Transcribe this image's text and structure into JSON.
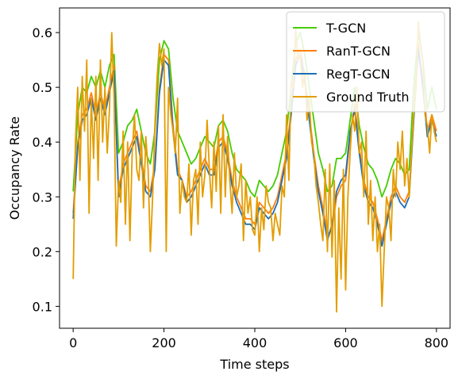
{
  "chart_data": {
    "type": "line",
    "title": "",
    "xlabel": "Time steps",
    "ylabel": "Occupancy Rate",
    "xlim": [
      -30,
      830
    ],
    "ylim": [
      0.06,
      0.645
    ],
    "xticks": [
      0,
      200,
      400,
      600,
      800
    ],
    "yticks": [
      0.1,
      0.2,
      0.3,
      0.4,
      0.5,
      0.6
    ],
    "grid": false,
    "legend": "top-right",
    "series": [
      {
        "name": "T-GCN",
        "color": "#44cc00",
        "x": [
          0,
          10,
          20,
          30,
          40,
          50,
          60,
          70,
          80,
          90,
          100,
          110,
          120,
          130,
          140,
          150,
          160,
          170,
          180,
          190,
          200,
          210,
          220,
          230,
          240,
          250,
          260,
          270,
          280,
          290,
          300,
          310,
          320,
          330,
          340,
          350,
          360,
          370,
          380,
          390,
          400,
          410,
          420,
          430,
          440,
          450,
          460,
          470,
          480,
          490,
          500,
          510,
          520,
          530,
          540,
          550,
          560,
          570,
          580,
          590,
          600,
          610,
          620,
          630,
          640,
          650,
          660,
          670,
          680,
          690,
          700,
          710,
          720,
          730,
          740,
          750,
          760,
          770,
          780,
          790,
          800
        ],
        "y": [
          0.31,
          0.45,
          0.5,
          0.49,
          0.52,
          0.5,
          0.53,
          0.5,
          0.54,
          0.56,
          0.38,
          0.4,
          0.43,
          0.44,
          0.46,
          0.42,
          0.38,
          0.36,
          0.42,
          0.55,
          0.585,
          0.57,
          0.48,
          0.42,
          0.4,
          0.38,
          0.36,
          0.37,
          0.39,
          0.41,
          0.4,
          0.39,
          0.43,
          0.44,
          0.42,
          0.38,
          0.35,
          0.34,
          0.33,
          0.31,
          0.3,
          0.33,
          0.32,
          0.31,
          0.32,
          0.34,
          0.38,
          0.42,
          0.5,
          0.58,
          0.6,
          0.56,
          0.5,
          0.44,
          0.38,
          0.35,
          0.31,
          0.32,
          0.37,
          0.37,
          0.38,
          0.44,
          0.5,
          0.43,
          0.39,
          0.36,
          0.35,
          0.33,
          0.3,
          0.32,
          0.35,
          0.37,
          0.36,
          0.34,
          0.35,
          0.5,
          0.6,
          0.55,
          0.46,
          0.5,
          0.46
        ]
      },
      {
        "name": "RanT-GCN",
        "color": "#ff7f0e",
        "x": [
          0,
          10,
          20,
          30,
          40,
          50,
          60,
          70,
          80,
          90,
          100,
          110,
          120,
          130,
          140,
          150,
          160,
          170,
          180,
          190,
          200,
          210,
          220,
          230,
          240,
          250,
          260,
          270,
          280,
          290,
          300,
          310,
          320,
          330,
          340,
          350,
          360,
          370,
          380,
          390,
          400,
          410,
          420,
          430,
          440,
          450,
          460,
          470,
          480,
          490,
          500,
          510,
          520,
          530,
          540,
          550,
          560,
          570,
          580,
          590,
          600,
          610,
          620,
          630,
          640,
          650,
          660,
          670,
          680,
          690,
          700,
          710,
          720,
          730,
          740,
          750,
          760,
          770,
          780,
          790,
          800
        ],
        "y": [
          0.27,
          0.4,
          0.45,
          0.46,
          0.49,
          0.45,
          0.49,
          0.46,
          0.5,
          0.54,
          0.31,
          0.36,
          0.38,
          0.4,
          0.42,
          0.37,
          0.32,
          0.31,
          0.36,
          0.5,
          0.56,
          0.55,
          0.43,
          0.35,
          0.33,
          0.3,
          0.31,
          0.33,
          0.35,
          0.37,
          0.35,
          0.35,
          0.4,
          0.41,
          0.38,
          0.33,
          0.3,
          0.28,
          0.26,
          0.26,
          0.25,
          0.29,
          0.28,
          0.27,
          0.28,
          0.3,
          0.34,
          0.38,
          0.46,
          0.55,
          0.57,
          0.52,
          0.45,
          0.38,
          0.32,
          0.28,
          0.23,
          0.24,
          0.3,
          0.32,
          0.33,
          0.41,
          0.47,
          0.39,
          0.33,
          0.3,
          0.29,
          0.26,
          0.22,
          0.26,
          0.3,
          0.32,
          0.3,
          0.29,
          0.31,
          0.45,
          0.58,
          0.51,
          0.42,
          0.45,
          0.42
        ]
      },
      {
        "name": "RegT-GCN",
        "color": "#1f6fb4",
        "x": [
          0,
          10,
          20,
          30,
          40,
          50,
          60,
          70,
          80,
          90,
          100,
          110,
          120,
          130,
          140,
          150,
          160,
          170,
          180,
          190,
          200,
          210,
          220,
          230,
          240,
          250,
          260,
          270,
          280,
          290,
          300,
          310,
          320,
          330,
          340,
          350,
          360,
          370,
          380,
          390,
          400,
          410,
          420,
          430,
          440,
          450,
          460,
          470,
          480,
          490,
          500,
          510,
          520,
          530,
          540,
          550,
          560,
          570,
          580,
          590,
          600,
          610,
          620,
          630,
          640,
          650,
          660,
          670,
          680,
          690,
          700,
          710,
          720,
          730,
          740,
          750,
          760,
          770,
          780,
          790,
          800
        ],
        "y": [
          0.26,
          0.39,
          0.44,
          0.45,
          0.48,
          0.44,
          0.48,
          0.45,
          0.49,
          0.53,
          0.3,
          0.35,
          0.37,
          0.39,
          0.41,
          0.36,
          0.31,
          0.3,
          0.35,
          0.49,
          0.55,
          0.54,
          0.42,
          0.34,
          0.33,
          0.29,
          0.3,
          0.32,
          0.34,
          0.36,
          0.34,
          0.34,
          0.39,
          0.4,
          0.37,
          0.32,
          0.29,
          0.27,
          0.25,
          0.25,
          0.24,
          0.28,
          0.27,
          0.26,
          0.27,
          0.29,
          0.33,
          0.37,
          0.45,
          0.54,
          0.56,
          0.51,
          0.44,
          0.37,
          0.31,
          0.27,
          0.22,
          0.25,
          0.31,
          0.33,
          0.34,
          0.42,
          0.46,
          0.38,
          0.32,
          0.29,
          0.28,
          0.25,
          0.21,
          0.25,
          0.29,
          0.31,
          0.29,
          0.28,
          0.3,
          0.44,
          0.57,
          0.5,
          0.41,
          0.44,
          0.41
        ]
      },
      {
        "name": "Ground Truth",
        "color": "#e39d00",
        "x": [
          0,
          5,
          10,
          15,
          20,
          25,
          30,
          35,
          40,
          45,
          50,
          55,
          60,
          65,
          70,
          75,
          80,
          85,
          90,
          95,
          100,
          105,
          110,
          115,
          120,
          125,
          130,
          135,
          140,
          145,
          150,
          155,
          160,
          165,
          170,
          175,
          180,
          185,
          190,
          195,
          200,
          205,
          210,
          215,
          220,
          225,
          230,
          235,
          240,
          245,
          250,
          255,
          260,
          265,
          270,
          275,
          280,
          285,
          290,
          295,
          300,
          305,
          310,
          315,
          320,
          325,
          330,
          335,
          340,
          345,
          350,
          355,
          360,
          365,
          370,
          375,
          380,
          385,
          390,
          395,
          400,
          405,
          410,
          415,
          420,
          425,
          430,
          435,
          440,
          445,
          450,
          455,
          460,
          465,
          470,
          475,
          480,
          485,
          490,
          495,
          500,
          505,
          510,
          515,
          520,
          525,
          530,
          535,
          540,
          545,
          550,
          555,
          560,
          565,
          570,
          575,
          580,
          585,
          590,
          595,
          600,
          605,
          610,
          615,
          620,
          625,
          630,
          635,
          640,
          645,
          650,
          655,
          660,
          665,
          670,
          675,
          680,
          685,
          690,
          695,
          700,
          705,
          710,
          715,
          720,
          725,
          730,
          735,
          740,
          745,
          750,
          755,
          760,
          765,
          770,
          775,
          780,
          785,
          790,
          795,
          800
        ],
        "y": [
          0.15,
          0.4,
          0.5,
          0.33,
          0.52,
          0.42,
          0.55,
          0.27,
          0.48,
          0.37,
          0.52,
          0.33,
          0.55,
          0.4,
          0.5,
          0.38,
          0.46,
          0.6,
          0.48,
          0.21,
          0.33,
          0.29,
          0.42,
          0.25,
          0.4,
          0.22,
          0.38,
          0.45,
          0.35,
          0.33,
          0.42,
          0.28,
          0.41,
          0.35,
          0.2,
          0.3,
          0.43,
          0.52,
          0.58,
          0.54,
          0.57,
          0.2,
          0.5,
          0.45,
          0.42,
          0.38,
          0.48,
          0.27,
          0.33,
          0.3,
          0.29,
          0.36,
          0.23,
          0.33,
          0.35,
          0.25,
          0.4,
          0.3,
          0.34,
          0.44,
          0.35,
          0.28,
          0.4,
          0.31,
          0.43,
          0.27,
          0.45,
          0.3,
          0.41,
          0.33,
          0.27,
          0.38,
          0.3,
          0.32,
          0.36,
          0.22,
          0.33,
          0.27,
          0.3,
          0.24,
          0.23,
          0.3,
          0.2,
          0.28,
          0.24,
          0.32,
          0.29,
          0.28,
          0.22,
          0.27,
          0.25,
          0.23,
          0.32,
          0.3,
          0.45,
          0.33,
          0.51,
          0.5,
          0.61,
          0.55,
          0.56,
          0.5,
          0.53,
          0.44,
          0.48,
          0.4,
          0.38,
          0.32,
          0.29,
          0.25,
          0.22,
          0.35,
          0.2,
          0.36,
          0.19,
          0.33,
          0.09,
          0.28,
          0.15,
          0.35,
          0.13,
          0.3,
          0.38,
          0.45,
          0.42,
          0.5,
          0.38,
          0.4,
          0.3,
          0.42,
          0.25,
          0.33,
          0.22,
          0.3,
          0.2,
          0.25,
          0.1,
          0.2,
          0.3,
          0.28,
          0.22,
          0.35,
          0.3,
          0.4,
          0.35,
          0.42,
          0.32,
          0.37,
          0.3,
          0.38,
          0.45,
          0.5,
          0.62,
          0.58,
          0.55,
          0.45,
          0.43,
          0.38,
          0.45,
          0.42,
          0.4
        ]
      }
    ]
  }
}
